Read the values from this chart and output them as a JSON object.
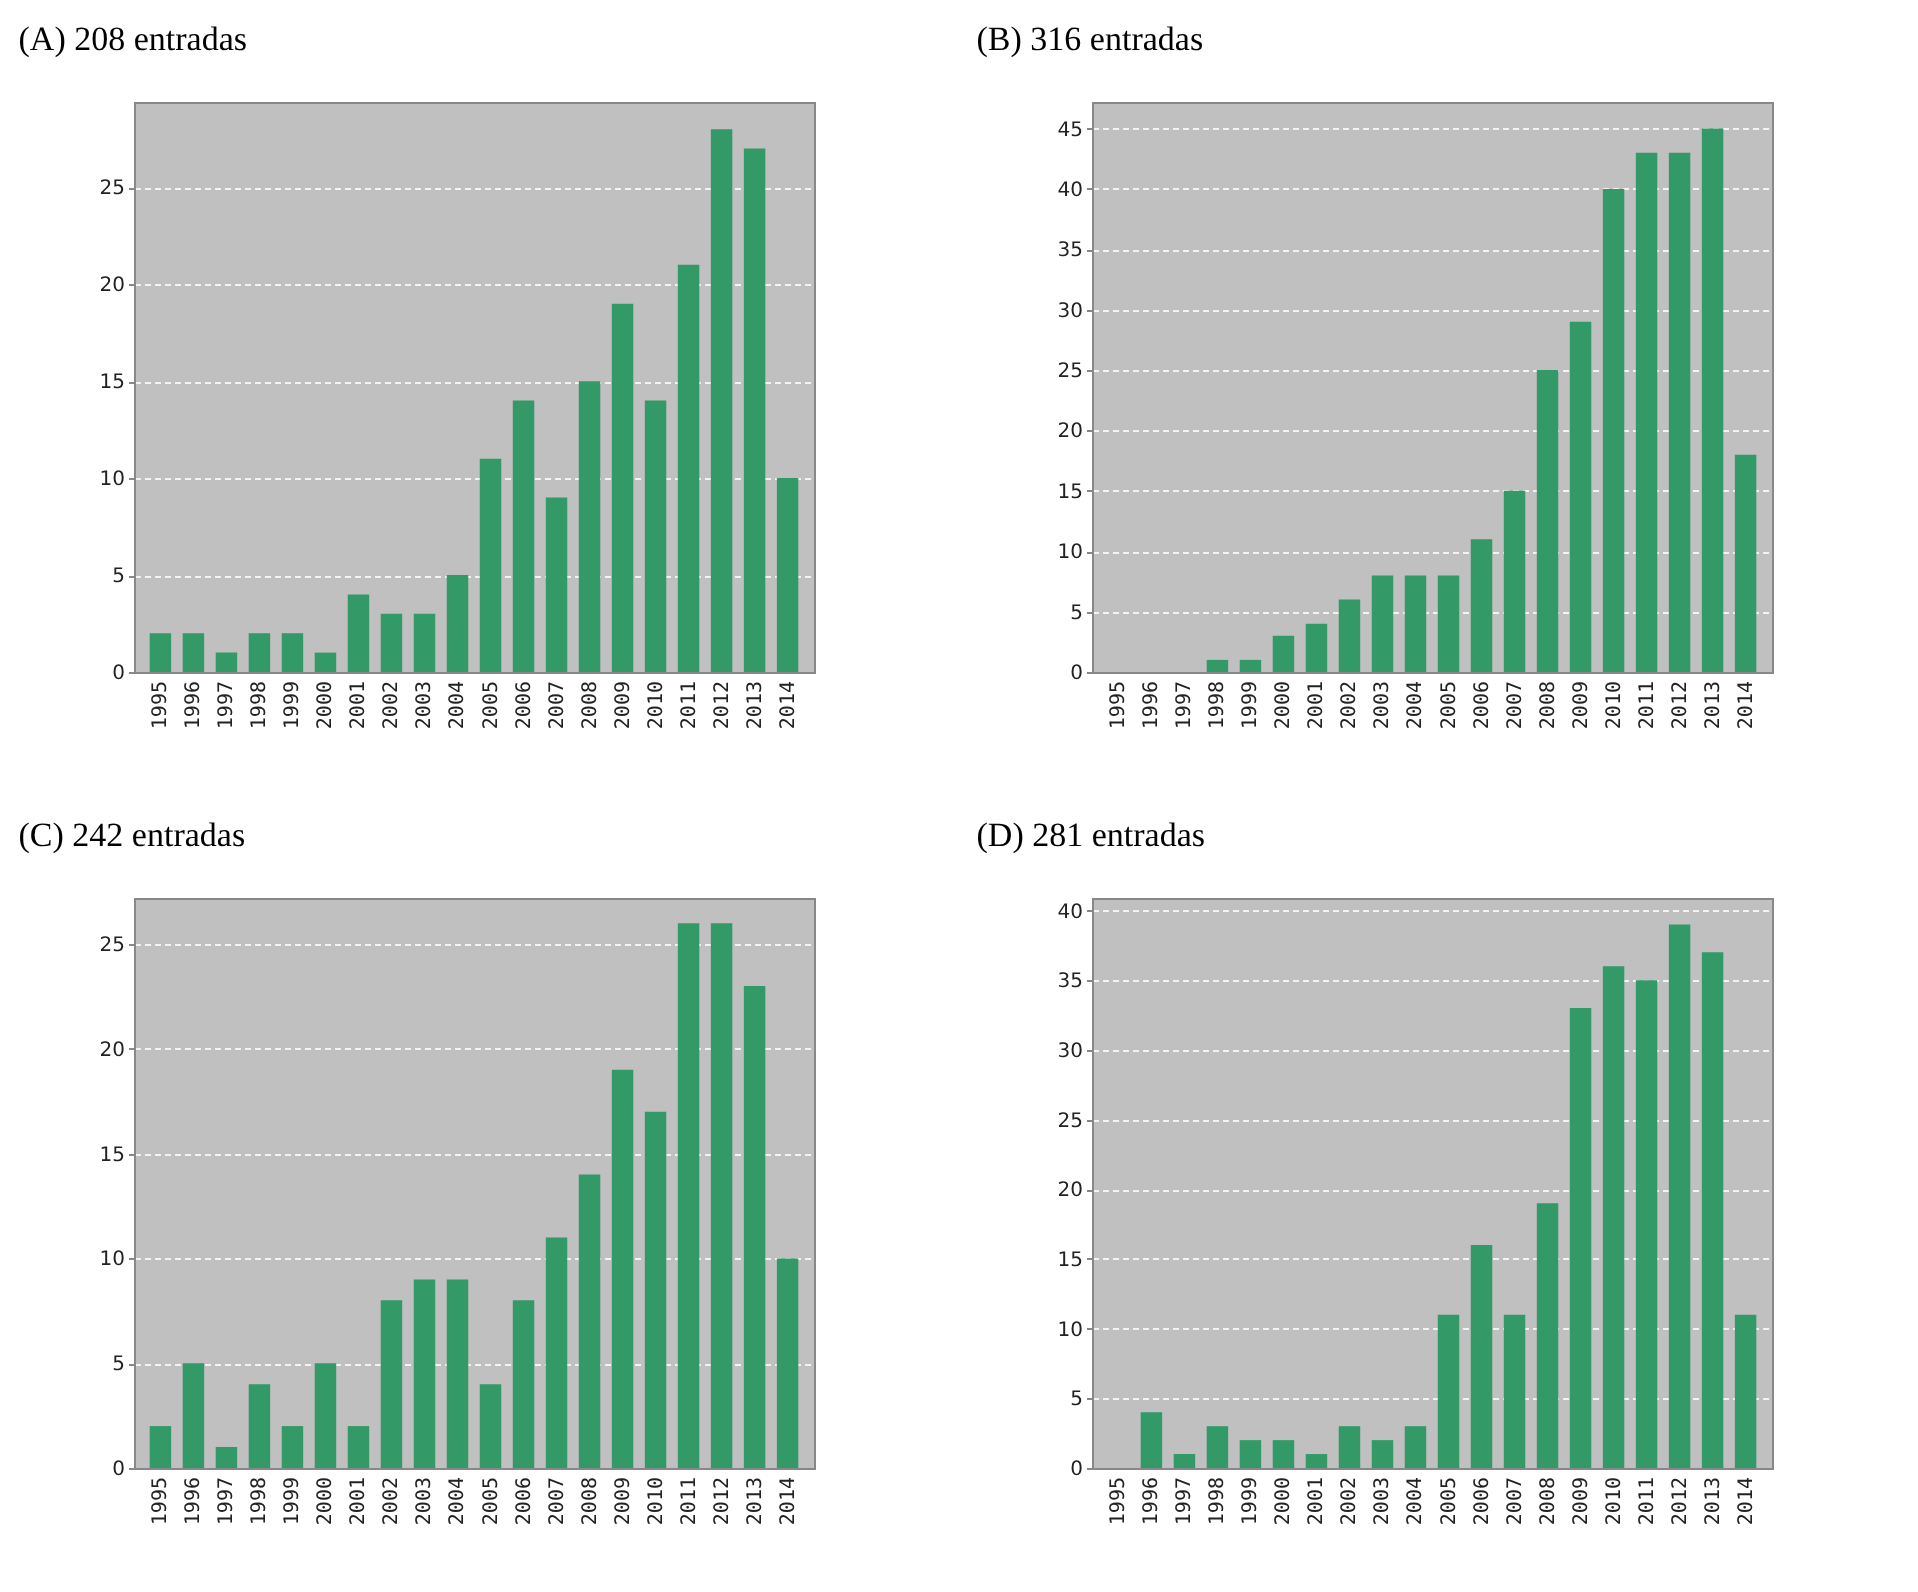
{
  "chart_data": [
    {
      "type": "bar",
      "title": "(A) 208 entradas",
      "categories": [
        "1995",
        "1996",
        "1997",
        "1998",
        "1999",
        "2000",
        "2001",
        "2002",
        "2003",
        "2004",
        "2005",
        "2006",
        "2007",
        "2008",
        "2009",
        "2010",
        "2011",
        "2012",
        "2013",
        "2014"
      ],
      "values": [
        2,
        2,
        1,
        2,
        2,
        1,
        4,
        3,
        3,
        5,
        11,
        14,
        9,
        15,
        19,
        14,
        21,
        28,
        27,
        10
      ],
      "color": "#339966",
      "ylim": [
        0,
        29.4
      ],
      "yticks": [
        0,
        5,
        10,
        15,
        20,
        25
      ],
      "grid": "y"
    },
    {
      "type": "bar",
      "title": "(B) 316 entradas",
      "categories": [
        "1995",
        "1996",
        "1997",
        "1998",
        "1999",
        "2000",
        "2001",
        "2002",
        "2003",
        "2004",
        "2005",
        "2006",
        "2007",
        "2008",
        "2009",
        "2010",
        "2011",
        "2012",
        "2013",
        "2014"
      ],
      "values": [
        0,
        0,
        0,
        1,
        1,
        3,
        4,
        6,
        8,
        8,
        8,
        11,
        15,
        25,
        29,
        40,
        43,
        43,
        45,
        18
      ],
      "color": "#339966",
      "ylim": [
        0,
        47.2
      ],
      "yticks": [
        0,
        5,
        10,
        15,
        20,
        25,
        30,
        35,
        40,
        45
      ],
      "grid": "y"
    },
    {
      "type": "bar",
      "title": "(C) 242 entradas",
      "categories": [
        "1995",
        "1996",
        "1997",
        "1998",
        "1999",
        "2000",
        "2001",
        "2002",
        "2003",
        "2004",
        "2005",
        "2006",
        "2007",
        "2008",
        "2009",
        "2010",
        "2011",
        "2012",
        "2013",
        "2014"
      ],
      "values": [
        2,
        5,
        1,
        4,
        2,
        5,
        2,
        8,
        9,
        9,
        4,
        8,
        11,
        14,
        19,
        17,
        26,
        26,
        23,
        10
      ],
      "color": "#339966",
      "ylim": [
        0,
        27.2
      ],
      "yticks": [
        0,
        5,
        10,
        15,
        20,
        25
      ],
      "grid": "y"
    },
    {
      "type": "bar",
      "title": "(D) 281 entradas",
      "categories": [
        "1995",
        "1996",
        "1997",
        "1998",
        "1999",
        "2000",
        "2001",
        "2002",
        "2003",
        "2004",
        "2005",
        "2006",
        "2007",
        "2008",
        "2009",
        "2010",
        "2011",
        "2012",
        "2013",
        "2014"
      ],
      "values": [
        0,
        4,
        1,
        3,
        2,
        2,
        1,
        3,
        2,
        3,
        11,
        16,
        11,
        19,
        33,
        36,
        35,
        39,
        37,
        11
      ],
      "color": "#339966",
      "ylim": [
        0,
        40.9
      ],
      "yticks": [
        0,
        5,
        10,
        15,
        20,
        25,
        30,
        35,
        40
      ],
      "grid": "y"
    }
  ]
}
